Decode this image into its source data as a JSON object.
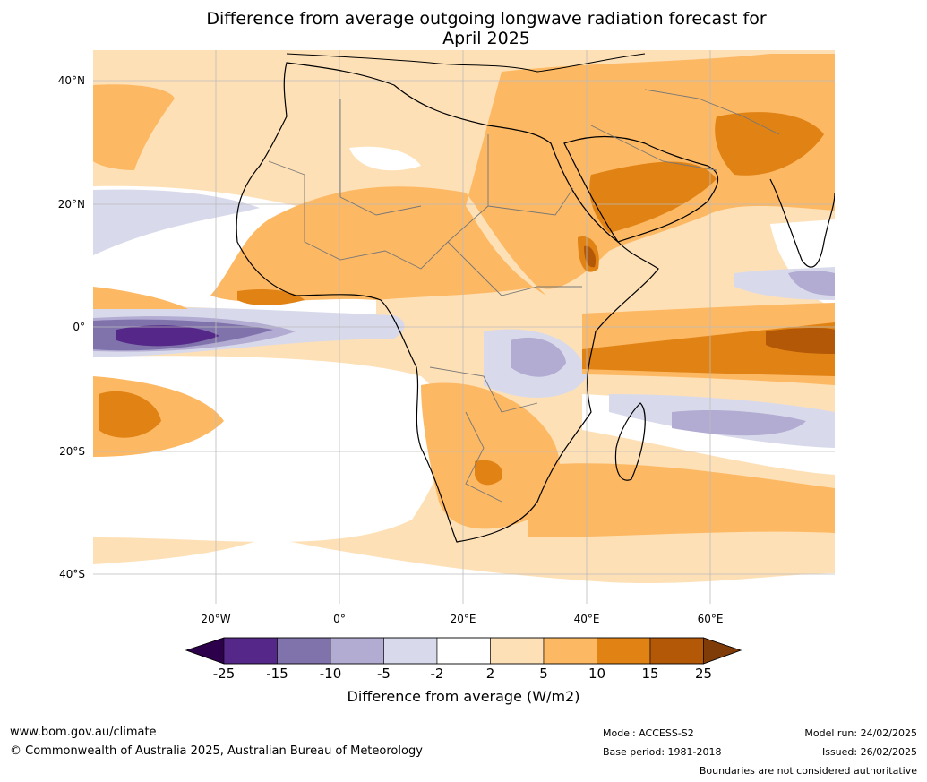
{
  "title_line1": "Difference from average outgoing longwave radiation forecast for",
  "title_line2": "April 2025",
  "lat_ticks": [
    "40°N",
    "20°N",
    "0°",
    "20°S",
    "40°S"
  ],
  "lon_ticks": [
    "20°W",
    "0°",
    "20°E",
    "40°E",
    "60°E"
  ],
  "colorbar": {
    "title": "Difference from average (W/m2)",
    "labels": [
      "-25",
      "-15",
      "-10",
      "-5",
      "-2",
      "2",
      "5",
      "10",
      "15",
      "25"
    ],
    "colors": [
      "#2d004b",
      "#542788",
      "#8073ac",
      "#b2abd2",
      "#d8daeb",
      "#ffffff",
      "#fee0b6",
      "#fdb863",
      "#e08214",
      "#b35806",
      "#7f3b08"
    ]
  },
  "footer": {
    "url": "www.bom.gov.au/climate",
    "copyright": "© Commonwealth of Australia 2025, Australian Bureau of Meteorology",
    "model": "Model: ACCESS-S2",
    "base_period": "Base period: 1981-2018",
    "model_run": "Model run: 24/02/2025",
    "issued": "Issued: 26/02/2025",
    "disclaimer": "Boundaries are not considered authoritative"
  }
}
